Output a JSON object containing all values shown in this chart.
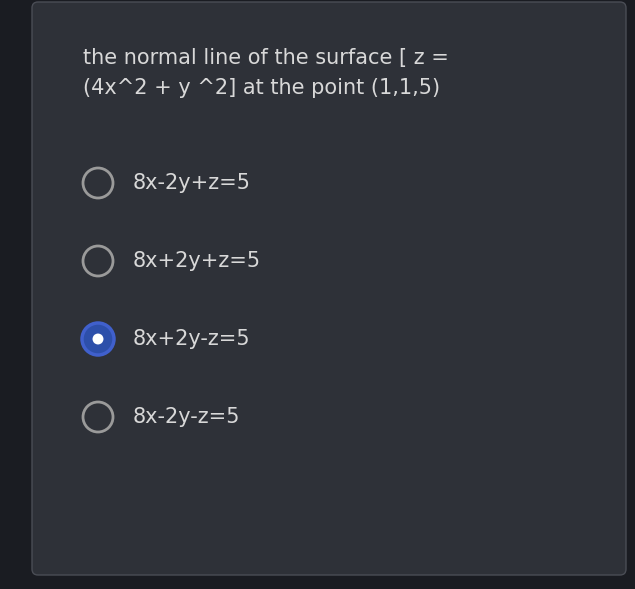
{
  "bg_outer": "#1a1c22",
  "bg_card": "#2e3138",
  "card_border_color": "#4a4d55",
  "text_color": "#d8d8d8",
  "question": "the normal line of the surface [ z =\n(4x^2 + y ^2] at the point (1,1,5)",
  "options": [
    "8x-2y+z=5",
    "8x+2y+z=5",
    "8x+2y-z=5",
    "8x-2y-z=5"
  ],
  "selected_index": 2,
  "radio_color_normal": "#9a9a9a",
  "radio_color_selected_fill": "#2d4faa",
  "radio_color_selected_border": "#4060cc",
  "question_fontsize": 15,
  "option_fontsize": 15,
  "figwidth": 6.35,
  "figheight": 5.89,
  "dpi": 100
}
